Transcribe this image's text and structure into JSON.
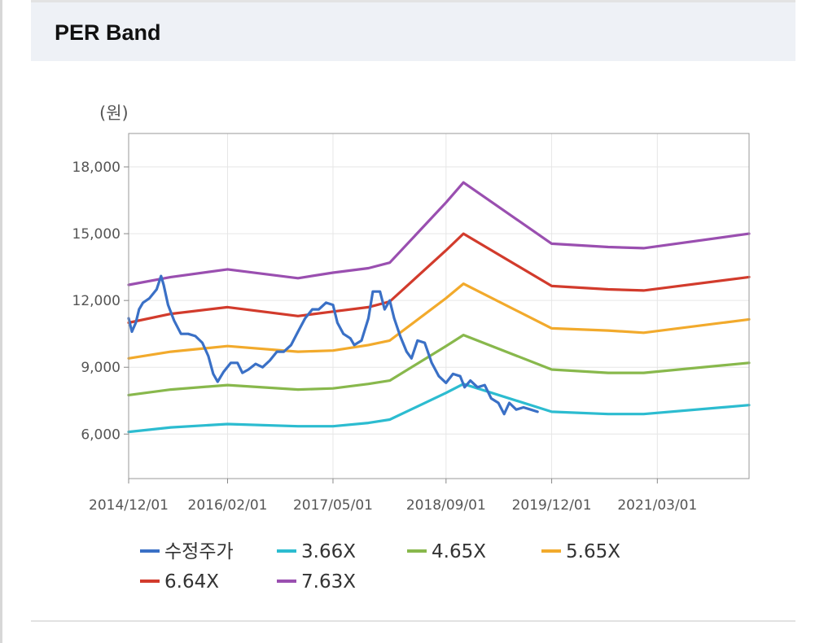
{
  "header": {
    "title": "PER Band"
  },
  "chart_data": {
    "type": "line",
    "unit_label": "(원)",
    "grid": true,
    "legend_position": "bottom",
    "x_ticks": [
      "2014/12/01",
      "2016/02/01",
      "2017/05/01",
      "2018/09/01",
      "2019/12/01",
      "2021/03/01"
    ],
    "x_range": [
      "2014-12-01",
      "2022-04-01"
    ],
    "y_ticks": [
      6000,
      9000,
      12000,
      15000,
      18000
    ],
    "y_tick_labels": [
      "6,000",
      "9,000",
      "12,000",
      "15,000",
      "18,000"
    ],
    "ylim": [
      4000,
      19500
    ],
    "series": [
      {
        "name": "수정주가",
        "color": "#3a70c6",
        "points": [
          [
            "2014-12-01",
            11200
          ],
          [
            "2014-12-15",
            10600
          ],
          [
            "2015-01-01",
            11000
          ],
          [
            "2015-01-15",
            11600
          ],
          [
            "2015-02-01",
            11900
          ],
          [
            "2015-03-01",
            12100
          ],
          [
            "2015-04-01",
            12500
          ],
          [
            "2015-04-20",
            13100
          ],
          [
            "2015-05-01",
            12700
          ],
          [
            "2015-05-20",
            11800
          ],
          [
            "2015-06-15",
            11100
          ],
          [
            "2015-07-15",
            10500
          ],
          [
            "2015-08-15",
            10500
          ],
          [
            "2015-09-15",
            10400
          ],
          [
            "2015-10-15",
            10100
          ],
          [
            "2015-11-10",
            9500
          ],
          [
            "2015-12-01",
            8700
          ],
          [
            "2015-12-20",
            8350
          ],
          [
            "2016-01-15",
            8800
          ],
          [
            "2016-02-15",
            9200
          ],
          [
            "2016-03-15",
            9200
          ],
          [
            "2016-04-05",
            8750
          ],
          [
            "2016-05-01",
            8900
          ],
          [
            "2016-06-01",
            9150
          ],
          [
            "2016-07-01",
            9000
          ],
          [
            "2016-08-01",
            9300
          ],
          [
            "2016-09-01",
            9700
          ],
          [
            "2016-10-01",
            9700
          ],
          [
            "2016-11-01",
            10000
          ],
          [
            "2016-12-01",
            10600
          ],
          [
            "2017-01-01",
            11200
          ],
          [
            "2017-02-01",
            11600
          ],
          [
            "2017-03-01",
            11600
          ],
          [
            "2017-04-01",
            11900
          ],
          [
            "2017-05-01",
            11800
          ],
          [
            "2017-05-20",
            11000
          ],
          [
            "2017-06-15",
            10500
          ],
          [
            "2017-07-15",
            10300
          ],
          [
            "2017-08-01",
            10000
          ],
          [
            "2017-09-01",
            10200
          ],
          [
            "2017-10-01",
            11200
          ],
          [
            "2017-10-20",
            12400
          ],
          [
            "2017-11-20",
            12400
          ],
          [
            "2017-12-10",
            11600
          ],
          [
            "2018-01-01",
            12000
          ],
          [
            "2018-01-20",
            11200
          ],
          [
            "2018-02-15",
            10400
          ],
          [
            "2018-03-15",
            9700
          ],
          [
            "2018-04-05",
            9400
          ],
          [
            "2018-05-01",
            10200
          ],
          [
            "2018-06-01",
            10100
          ],
          [
            "2018-07-01",
            9200
          ],
          [
            "2018-08-01",
            8600
          ],
          [
            "2018-09-01",
            8300
          ],
          [
            "2018-10-01",
            8700
          ],
          [
            "2018-11-01",
            8600
          ],
          [
            "2018-11-20",
            8100
          ],
          [
            "2018-12-15",
            8400
          ],
          [
            "2019-01-15",
            8100
          ],
          [
            "2019-02-15",
            8200
          ],
          [
            "2019-03-15",
            7600
          ],
          [
            "2019-04-15",
            7400
          ],
          [
            "2019-05-10",
            6900
          ],
          [
            "2019-06-01",
            7400
          ],
          [
            "2019-07-01",
            7100
          ],
          [
            "2019-08-01",
            7200
          ],
          [
            "2019-09-01",
            7100
          ],
          [
            "2019-10-01",
            7000
          ]
        ]
      },
      {
        "name": "3.66X",
        "color": "#2cbcd0",
        "points": [
          [
            "2014-12-01",
            6100
          ],
          [
            "2015-06-01",
            6300
          ],
          [
            "2016-02-01",
            6450
          ],
          [
            "2016-12-01",
            6350
          ],
          [
            "2017-05-01",
            6350
          ],
          [
            "2017-10-01",
            6500
          ],
          [
            "2018-01-01",
            6650
          ],
          [
            "2018-09-01",
            7850
          ],
          [
            "2018-11-15",
            8250
          ],
          [
            "2019-12-01",
            7000
          ],
          [
            "2020-08-01",
            6900
          ],
          [
            "2021-01-01",
            6900
          ],
          [
            "2022-04-01",
            7300
          ]
        ]
      },
      {
        "name": "4.65X",
        "color": "#88b84c",
        "points": [
          [
            "2014-12-01",
            7750
          ],
          [
            "2015-06-01",
            8000
          ],
          [
            "2016-02-01",
            8200
          ],
          [
            "2016-12-01",
            8000
          ],
          [
            "2017-05-01",
            8050
          ],
          [
            "2017-10-01",
            8250
          ],
          [
            "2018-01-01",
            8400
          ],
          [
            "2018-09-01",
            9950
          ],
          [
            "2018-11-15",
            10450
          ],
          [
            "2019-12-01",
            8900
          ],
          [
            "2020-08-01",
            8750
          ],
          [
            "2021-01-01",
            8750
          ],
          [
            "2022-04-01",
            9200
          ]
        ]
      },
      {
        "name": "5.65X",
        "color": "#f2aa2c",
        "points": [
          [
            "2014-12-01",
            9400
          ],
          [
            "2015-06-01",
            9700
          ],
          [
            "2016-02-01",
            9950
          ],
          [
            "2016-12-01",
            9700
          ],
          [
            "2017-05-01",
            9750
          ],
          [
            "2017-10-01",
            10000
          ],
          [
            "2018-01-01",
            10200
          ],
          [
            "2018-09-01",
            12100
          ],
          [
            "2018-11-15",
            12750
          ],
          [
            "2019-12-01",
            10750
          ],
          [
            "2020-08-01",
            10650
          ],
          [
            "2021-01-01",
            10550
          ],
          [
            "2022-04-01",
            11150
          ]
        ]
      },
      {
        "name": "6.64X",
        "color": "#d23b2c",
        "points": [
          [
            "2014-12-01",
            11000
          ],
          [
            "2015-06-01",
            11400
          ],
          [
            "2016-02-01",
            11700
          ],
          [
            "2016-12-01",
            11300
          ],
          [
            "2017-05-01",
            11500
          ],
          [
            "2017-10-01",
            11700
          ],
          [
            "2018-01-01",
            11950
          ],
          [
            "2018-09-01",
            14250
          ],
          [
            "2018-11-15",
            15000
          ],
          [
            "2019-12-01",
            12650
          ],
          [
            "2020-08-01",
            12500
          ],
          [
            "2021-01-01",
            12450
          ],
          [
            "2022-04-01",
            13050
          ]
        ]
      },
      {
        "name": "7.63X",
        "color": "#9a4fb0",
        "points": [
          [
            "2014-12-01",
            12700
          ],
          [
            "2015-06-01",
            13050
          ],
          [
            "2016-02-01",
            13400
          ],
          [
            "2016-12-01",
            13000
          ],
          [
            "2017-05-01",
            13250
          ],
          [
            "2017-10-01",
            13450
          ],
          [
            "2018-01-01",
            13700
          ],
          [
            "2018-09-01",
            16400
          ],
          [
            "2018-11-15",
            17300
          ],
          [
            "2019-12-01",
            14550
          ],
          [
            "2020-08-01",
            14400
          ],
          [
            "2021-01-01",
            14350
          ],
          [
            "2022-04-01",
            15000
          ]
        ]
      }
    ]
  }
}
